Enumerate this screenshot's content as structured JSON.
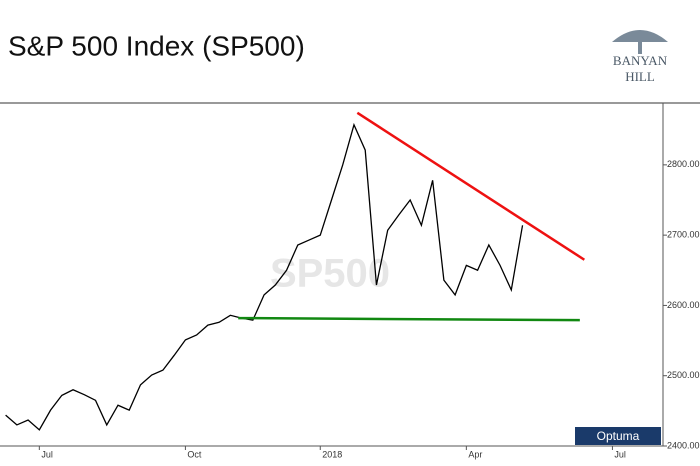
{
  "header": {
    "title": "S&P 500 Index  (SP500)",
    "logo_line1": "BANYAN",
    "logo_line2": "HILL"
  },
  "chart_data": {
    "type": "line",
    "watermark": "SP500",
    "badge": "Optuma",
    "categories": [
      null,
      null,
      null,
      "Jul",
      null,
      null,
      null,
      null,
      null,
      null,
      null,
      null,
      null,
      null,
      null,
      null,
      "Oct",
      null,
      null,
      null,
      null,
      null,
      null,
      null,
      null,
      null,
      null,
      null,
      "2018",
      null,
      null,
      null,
      null,
      null,
      null,
      null,
      null,
      null,
      null,
      null,
      null,
      "Apr",
      null,
      null,
      null,
      null,
      null,
      null,
      null,
      null,
      null,
      null,
      null,
      null,
      "Jul",
      null,
      null,
      null,
      null
    ],
    "series": [
      {
        "name": "SP500",
        "color": "#000000",
        "values": [
          2444,
          2430,
          2437,
          2423,
          2451,
          2472,
          2480,
          2473,
          2465,
          2430,
          2458,
          2451,
          2487,
          2501,
          2508,
          2529,
          2551,
          2558,
          2572,
          2576,
          2586,
          2582,
          2579,
          2615,
          2629,
          2650,
          2686,
          2693,
          2700,
          2750,
          2800,
          2857,
          2821,
          2629,
          2707,
          2729,
          2750,
          2714,
          2778,
          2636,
          2615,
          2657,
          2650,
          2686,
          2657,
          2622,
          2714,
          null,
          null,
          null,
          null,
          null,
          null,
          null,
          null,
          null,
          null,
          null,
          null
        ]
      }
    ],
    "trendlines": [
      {
        "color": "#ee1111",
        "from": [
          31.3,
          2874
        ],
        "to": [
          51.5,
          2665
        ]
      },
      {
        "color": "#118811",
        "from": [
          20.7,
          2582
        ],
        "to": [
          51.1,
          2579
        ]
      }
    ],
    "ylim": [
      2400,
      2888
    ],
    "yticks": [
      {
        "value": 2400,
        "label": "2400.00"
      },
      {
        "value": 2500,
        "label": "2500.00"
      },
      {
        "value": 2600,
        "label": "2600.00"
      },
      {
        "value": 2700,
        "label": "2700.00"
      },
      {
        "value": 2800,
        "label": "2800.00"
      }
    ],
    "grid": false
  }
}
